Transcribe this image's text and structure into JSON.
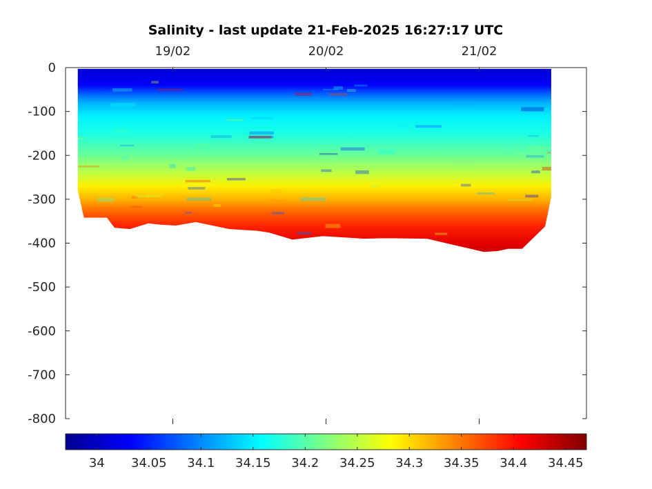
{
  "chart_data": {
    "type": "heatmap",
    "title": "Salinity - last update 21-Feb-2025 16:27:17 UTC",
    "xlabel": "",
    "ylabel": "",
    "x_ticks": [
      "19/02",
      "20/02",
      "21/02"
    ],
    "x_tick_values": [
      19,
      20,
      21
    ],
    "xlim": [
      18.3,
      21.7
    ],
    "y_ticks": [
      "0",
      "-100",
      "-200",
      "-300",
      "-400",
      "-500",
      "-600",
      "-700",
      "-800"
    ],
    "y_tick_values": [
      0,
      -100,
      -200,
      -300,
      -400,
      -500,
      -600,
      -700,
      -800
    ],
    "ylim": [
      -800,
      0
    ],
    "colorbar": {
      "colormap": "jet",
      "ticks": [
        "34",
        "34.05",
        "34.1",
        "34.15",
        "34.2",
        "34.25",
        "34.3",
        "34.35",
        "34.4",
        "34.45"
      ],
      "tick_values": [
        34,
        34.05,
        34.1,
        34.15,
        34.2,
        34.25,
        34.3,
        34.35,
        34.4,
        34.45
      ],
      "range": [
        33.97,
        34.47
      ]
    },
    "profile_depth_by_day": {
      "time": [
        18.38,
        18.42,
        18.57,
        18.62,
        18.72,
        18.84,
        18.92,
        19.02,
        19.15,
        19.37,
        19.55,
        19.63,
        19.78,
        19.98,
        20.25,
        20.35,
        20.45,
        20.66,
        21.03,
        21.12,
        21.19,
        21.28,
        21.43,
        21.47
      ],
      "max_depth": [
        -280,
        -342,
        -342,
        -365,
        -368,
        -355,
        -358,
        -360,
        -352,
        -368,
        -372,
        -376,
        -392,
        -384,
        -390,
        -389,
        -389,
        -390,
        -420,
        -418,
        -413,
        -413,
        -362,
        -295
      ]
    },
    "salinity_profile": {
      "depth": [
        0,
        -40,
        -60,
        -80,
        -110,
        -150,
        -200,
        -240,
        -270,
        -300,
        -330,
        -360,
        -400,
        -420
      ],
      "salinity": [
        34.01,
        34.03,
        34.08,
        34.12,
        34.15,
        34.17,
        34.21,
        34.25,
        34.29,
        34.32,
        34.36,
        34.39,
        34.42,
        34.43
      ]
    }
  }
}
